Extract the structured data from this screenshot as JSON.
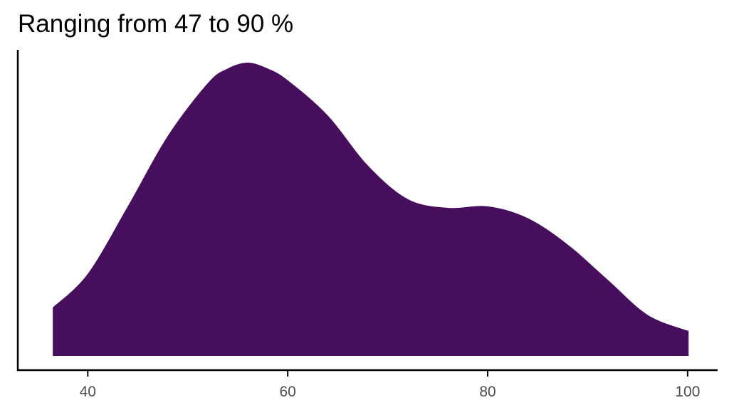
{
  "chart_data": {
    "type": "area",
    "title": "Ranging from 47 to 90 %",
    "xlabel": "",
    "ylabel": "",
    "xlim": [
      33,
      103
    ],
    "ylim": [
      0,
      1.0
    ],
    "x_ticks": [
      40,
      60,
      80,
      100
    ],
    "x_tick_labels": [
      "40",
      "60",
      "80",
      "100"
    ],
    "y_ticks": [],
    "grid": false,
    "legend": "none",
    "fill_color": "#470E5E",
    "series": [
      {
        "x": [
          36.5,
          40,
          44,
          48,
          52,
          54,
          56,
          58,
          60,
          64,
          68,
          72,
          76,
          80,
          84,
          88,
          92,
          96,
          100.1
        ],
        "y": [
          0.165,
          0.28,
          0.51,
          0.75,
          0.93,
          0.98,
          1.0,
          0.98,
          0.94,
          0.82,
          0.65,
          0.535,
          0.505,
          0.51,
          0.47,
          0.38,
          0.26,
          0.14,
          0.085
        ]
      }
    ]
  }
}
